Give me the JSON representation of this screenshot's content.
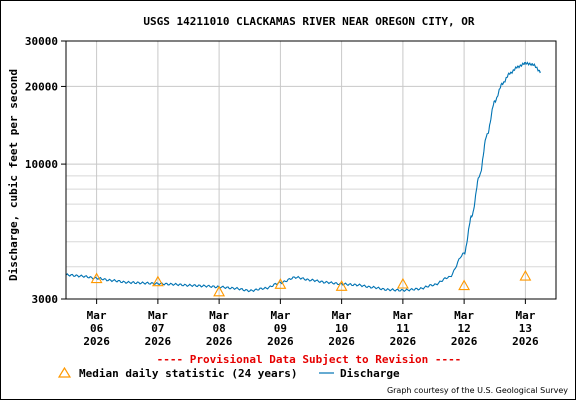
{
  "chart_data": {
    "type": "line",
    "title": "USGS 14211010 CLACKAMAS RIVER NEAR OREGON CITY, OR",
    "ylabel": "Discharge, cubic feet per second",
    "xlabel": "",
    "y_scale": "log",
    "ylim": [
      3000,
      30000
    ],
    "y_ticks": [
      {
        "value": 3000,
        "label": "3000"
      },
      {
        "value": 10000,
        "label": "10000"
      },
      {
        "value": 20000,
        "label": "20000"
      },
      {
        "value": 30000,
        "label": "30000"
      }
    ],
    "y_minor_gridlines": [
      4000,
      5000,
      6000,
      7000,
      8000,
      9000
    ],
    "xlim": [
      "2026-03-05 12:00",
      "2026-03-13 12:00"
    ],
    "x_ticks": [
      {
        "date": "2026-03-06",
        "month": "Mar",
        "day": "06",
        "year": "2026"
      },
      {
        "date": "2026-03-07",
        "month": "Mar",
        "day": "07",
        "year": "2026"
      },
      {
        "date": "2026-03-08",
        "month": "Mar",
        "day": "08",
        "year": "2026"
      },
      {
        "date": "2026-03-09",
        "month": "Mar",
        "day": "09",
        "year": "2026"
      },
      {
        "date": "2026-03-10",
        "month": "Mar",
        "day": "10",
        "year": "2026"
      },
      {
        "date": "2026-03-11",
        "month": "Mar",
        "day": "11",
        "year": "2026"
      },
      {
        "date": "2026-03-12",
        "month": "Mar",
        "day": "12",
        "year": "2026"
      },
      {
        "date": "2026-03-13",
        "month": "Mar",
        "day": "13",
        "year": "2026"
      }
    ],
    "grid": true,
    "series": [
      {
        "name": "Discharge",
        "color": "#0073b3",
        "style": "line",
        "points": [
          [
            "2026-03-05 12:00",
            3720
          ],
          [
            "2026-03-05 18:00",
            3680
          ],
          [
            "2026-03-06 00:00",
            3610
          ],
          [
            "2026-03-06 06:00",
            3540
          ],
          [
            "2026-03-06 12:00",
            3480
          ],
          [
            "2026-03-06 18:00",
            3460
          ],
          [
            "2026-03-07 00:00",
            3440
          ],
          [
            "2026-03-07 06:00",
            3420
          ],
          [
            "2026-03-07 12:00",
            3390
          ],
          [
            "2026-03-07 18:00",
            3370
          ],
          [
            "2026-03-08 00:00",
            3340
          ],
          [
            "2026-03-08 06:00",
            3300
          ],
          [
            "2026-03-08 12:00",
            3230
          ],
          [
            "2026-03-08 18:00",
            3300
          ],
          [
            "2026-03-09 00:00",
            3470
          ],
          [
            "2026-03-09 06:00",
            3640
          ],
          [
            "2026-03-09 12:00",
            3550
          ],
          [
            "2026-03-09 18:00",
            3480
          ],
          [
            "2026-03-10 00:00",
            3430
          ],
          [
            "2026-03-10 06:00",
            3400
          ],
          [
            "2026-03-10 12:00",
            3330
          ],
          [
            "2026-03-10 18:00",
            3260
          ],
          [
            "2026-03-11 00:00",
            3240
          ],
          [
            "2026-03-11 06:00",
            3280
          ],
          [
            "2026-03-11 12:00",
            3400
          ],
          [
            "2026-03-11 18:00",
            3640
          ],
          [
            "2026-03-12 00:00",
            4500
          ],
          [
            "2026-03-12 03:00",
            6300
          ],
          [
            "2026-03-12 06:00",
            9000
          ],
          [
            "2026-03-12 09:00",
            13000
          ],
          [
            "2026-03-12 12:00",
            17500
          ],
          [
            "2026-03-12 15:00",
            20500
          ],
          [
            "2026-03-12 18:00",
            22500
          ],
          [
            "2026-03-12 21:00",
            23800
          ],
          [
            "2026-03-13 00:00",
            24600
          ],
          [
            "2026-03-13 03:00",
            24300
          ],
          [
            "2026-03-13 06:00",
            22800
          ]
        ]
      },
      {
        "name": "Median daily statistic (24 years)",
        "color": "#ff9900",
        "style": "marker-triangle",
        "points": [
          [
            "2026-03-06 00:00",
            3600
          ],
          [
            "2026-03-07 00:00",
            3500
          ],
          [
            "2026-03-08 00:00",
            3200
          ],
          [
            "2026-03-09 00:00",
            3420
          ],
          [
            "2026-03-10 00:00",
            3360
          ],
          [
            "2026-03-11 00:00",
            3430
          ],
          [
            "2026-03-12 00:00",
            3380
          ],
          [
            "2026-03-13 00:00",
            3680
          ]
        ]
      }
    ],
    "legend": [
      {
        "label": "Median daily statistic (24 years)",
        "symbol": "triangle",
        "color": "#ff9900"
      },
      {
        "label": "Discharge",
        "symbol": "line",
        "color": "#0073b3"
      }
    ],
    "legend_position": "bottom",
    "annotations": [
      {
        "text": "---- Provisional Data Subject to Revision ----",
        "color": "#e60000"
      },
      {
        "text": "Graph courtesy of the U.S. Geological Survey"
      }
    ]
  }
}
